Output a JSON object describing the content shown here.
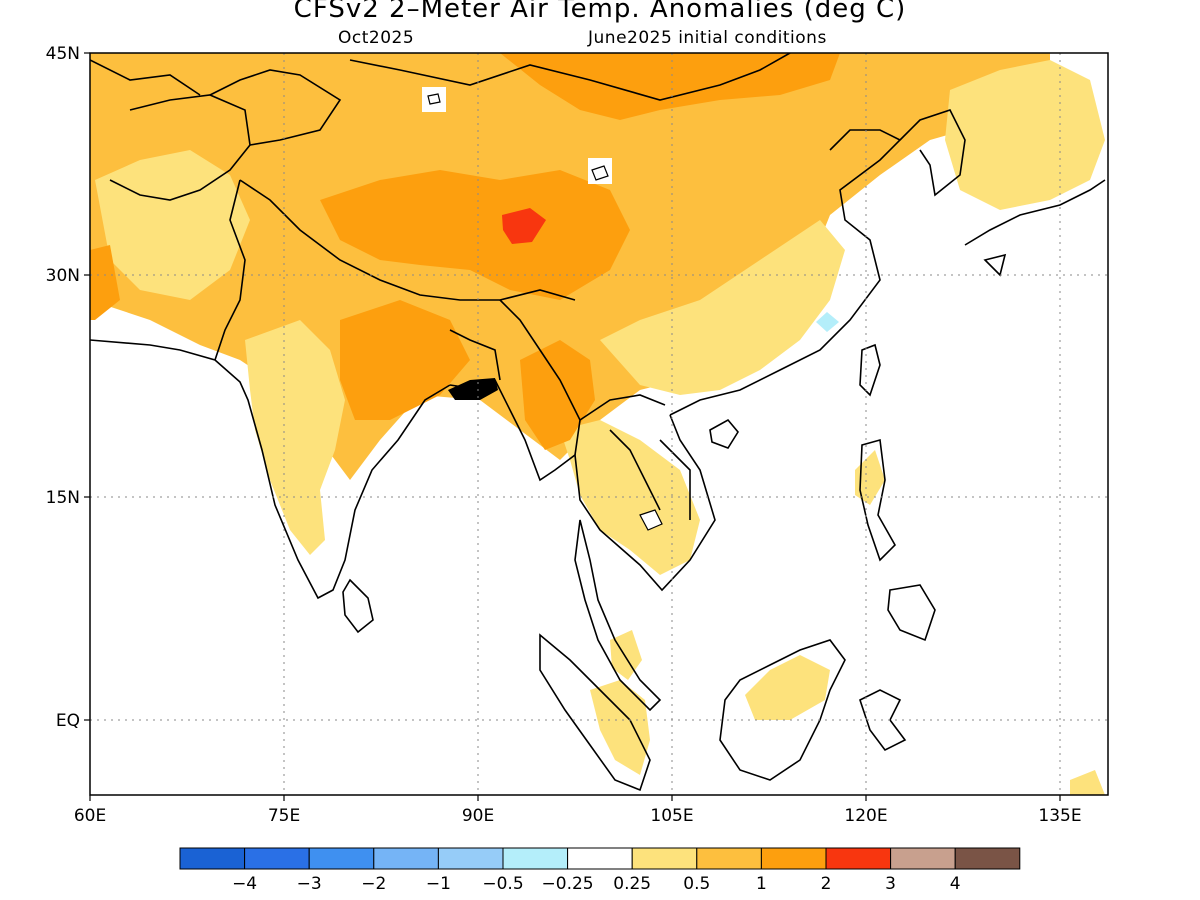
{
  "title": "CFSv2 2–Meter Air Temp. Anomalies (deg C)",
  "subtitle_left": "Oct2025",
  "subtitle_right": "June2025 initial conditions",
  "axes": {
    "lat_labels": [
      "45N",
      "30N",
      "15N",
      "EQ"
    ],
    "lon_labels": [
      "60E",
      "75E",
      "90E",
      "105E",
      "120E",
      "135E"
    ]
  },
  "legend": {
    "colors": [
      "#1a62d4",
      "#2a70e6",
      "#3f90f0",
      "#75b4f6",
      "#96ccf8",
      "#b4eefa",
      "#ffffff",
      "#fde27c",
      "#fdbf3e",
      "#fd9f0e",
      "#f8360f",
      "#c8a08e",
      "#7a5446"
    ],
    "labels": [
      "−4",
      "−3",
      "−2",
      "−1",
      "−0.5",
      "−0.25",
      "0.25",
      "0.5",
      "1",
      "2",
      "3",
      "4"
    ]
  }
}
